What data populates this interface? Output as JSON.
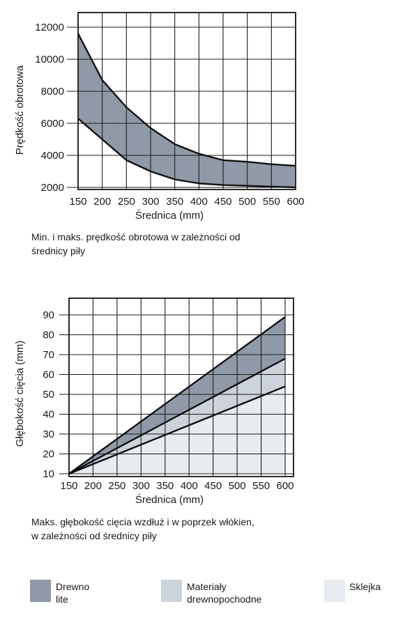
{
  "charts": {
    "speed": {
      "caption_line1": "Min. i maks. prędkość obrotowa w zależności od",
      "caption_line2": "średnicy piły"
    },
    "depth": {
      "caption_line1": "Maks. głębokość cięcia wzdłuż i w poprzek włókien,",
      "caption_line2": "w zależności od średnicy piły"
    }
  },
  "legend": [
    {
      "label": "Drewno lite",
      "color": "#8f99a8"
    },
    {
      "label_line1": "Materiały",
      "label_line2": "drewnopochodne",
      "color": "#cdd3db"
    },
    {
      "label": "Sklejka",
      "color": "#e8ebef"
    }
  ],
  "chart_data": [
    {
      "type": "area",
      "title": "",
      "xlabel": "Średnica (mm)",
      "ylabel": "Prędkość obrotowa",
      "x": [
        150,
        200,
        250,
        300,
        350,
        400,
        450,
        500,
        550,
        600
      ],
      "xlim": [
        150,
        600
      ],
      "ylim": [
        2000,
        12000
      ],
      "yticks": [
        2000,
        4000,
        6000,
        8000,
        10000,
        12000
      ],
      "grid": true,
      "series": [
        {
          "values": [
            6300,
            5000,
            3700,
            3000,
            2500,
            2250,
            2150,
            2100,
            2050,
            2000
          ]
        },
        {
          "values": [
            11600,
            8700,
            7000,
            5700,
            4700,
            4100,
            3700,
            3600,
            3450,
            3350
          ]
        }
      ],
      "fill": "#8f99a8"
    },
    {
      "type": "area",
      "title": "",
      "xlabel": "Średnica (mm)",
      "ylabel": "Głębokość cięcia (mm)",
      "x": [
        150,
        600
      ],
      "xlim": [
        150,
        600
      ],
      "ylim": [
        10,
        90
      ],
      "yticks": [
        10,
        20,
        30,
        40,
        50,
        60,
        70,
        80,
        90
      ],
      "grid": true,
      "series": [
        {
          "name": "Sklejka",
          "values": [
            10,
            54
          ]
        },
        {
          "name": "Materiały drewnopochodne",
          "values": [
            10,
            68
          ]
        },
        {
          "name": "Drewno lite",
          "values": [
            10,
            89
          ]
        }
      ]
    }
  ]
}
